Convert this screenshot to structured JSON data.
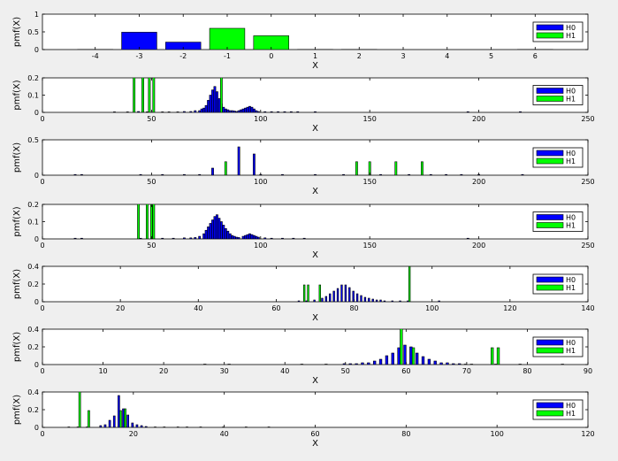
{
  "colors": {
    "H0": "#0000ff",
    "H1": "#00ff00",
    "background": "#efefef"
  },
  "chart_data": [
    {
      "type": "bar",
      "xlabel": "X",
      "ylabel": "pmf(X)",
      "xlim": [
        -5.2,
        7.2
      ],
      "ylim": [
        0,
        1
      ],
      "xticks": [
        -4,
        -3,
        -2,
        -1,
        0,
        1,
        2,
        3,
        4,
        5,
        6
      ],
      "yticks": [
        0,
        0.5,
        1
      ],
      "ytick_labels": [
        "0",
        "0.5",
        "1"
      ],
      "bar_width": 0.8,
      "grouped": false,
      "legend": "right",
      "series": [
        {
          "name": "H0",
          "points": [
            [
              -4,
              0.005
            ],
            [
              -3,
              0.49
            ],
            [
              -2,
              0.21
            ],
            [
              1,
              0.005
            ],
            [
              2,
              0.005
            ],
            [
              6,
              0.005
            ]
          ]
        },
        {
          "name": "H1",
          "points": [
            [
              -1,
              0.6
            ],
            [
              0,
              0.39
            ]
          ]
        }
      ]
    },
    {
      "type": "bar",
      "xlabel": "X",
      "ylabel": "pmf(X)",
      "xlim": [
        0,
        250
      ],
      "ylim": [
        0,
        0.2
      ],
      "xticks": [
        0,
        50,
        100,
        150,
        200,
        250
      ],
      "yticks": [
        0,
        0.1,
        0.2
      ],
      "ytick_labels": [
        "0",
        "0.1",
        "0.2"
      ],
      "bar_width": 0.9,
      "grouped": false,
      "legend": "right",
      "series": [
        {
          "name": "H0",
          "points": [
            [
              33,
              0.003
            ],
            [
              39,
              0.003
            ],
            [
              44,
              0.005
            ],
            [
              46,
              0.003
            ],
            [
              48,
              0.003
            ],
            [
              55,
              0.003
            ],
            [
              58,
              0.003
            ],
            [
              62,
              0.003
            ],
            [
              65,
              0.005
            ],
            [
              68,
              0.005
            ],
            [
              70,
              0.01
            ],
            [
              72,
              0.01
            ],
            [
              73,
              0.02
            ],
            [
              74,
              0.025
            ],
            [
              75,
              0.04
            ],
            [
              76,
              0.07
            ],
            [
              77,
              0.1
            ],
            [
              78,
              0.13
            ],
            [
              79,
              0.15
            ],
            [
              80,
              0.12
            ],
            [
              81,
              0.08
            ],
            [
              82,
              0.05
            ],
            [
              83,
              0.03
            ],
            [
              84,
              0.02
            ],
            [
              85,
              0.015
            ],
            [
              86,
              0.01
            ],
            [
              87,
              0.01
            ],
            [
              88,
              0.008
            ],
            [
              89,
              0.005
            ],
            [
              90,
              0.01
            ],
            [
              91,
              0.015
            ],
            [
              92,
              0.02
            ],
            [
              93,
              0.025
            ],
            [
              94,
              0.03
            ],
            [
              95,
              0.035
            ],
            [
              96,
              0.03
            ],
            [
              97,
              0.02
            ],
            [
              98,
              0.01
            ],
            [
              99,
              0.005
            ],
            [
              102,
              0.004
            ],
            [
              105,
              0.004
            ],
            [
              108,
              0.004
            ],
            [
              111,
              0.004
            ],
            [
              114,
              0.004
            ],
            [
              117,
              0.004
            ],
            [
              125,
              0.004
            ],
            [
              195,
              0.004
            ],
            [
              219,
              0.004
            ]
          ]
        },
        {
          "name": "H1",
          "points": [
            [
              42,
              0.22
            ],
            [
              46,
              0.22
            ],
            [
              49,
              0.22
            ],
            [
              51,
              0.22
            ],
            [
              82,
              0.22
            ]
          ]
        }
      ]
    },
    {
      "type": "bar",
      "xlabel": "X",
      "ylabel": "pmf(X)",
      "xlim": [
        0,
        250
      ],
      "ylim": [
        0,
        0.5
      ],
      "xticks": [
        0,
        50,
        100,
        150,
        200,
        250
      ],
      "yticks": [
        0,
        0.5
      ],
      "ytick_labels": [
        "0",
        "0.5"
      ],
      "bar_width": 0.9,
      "grouped": false,
      "legend": "right",
      "series": [
        {
          "name": "H0",
          "points": [
            [
              15,
              0.01
            ],
            [
              18,
              0.01
            ],
            [
              45,
              0.01
            ],
            [
              55,
              0.01
            ],
            [
              65,
              0.01
            ],
            [
              72,
              0.01
            ],
            [
              78,
              0.1
            ],
            [
              90,
              0.4
            ],
            [
              97,
              0.3
            ],
            [
              100,
              0.01
            ],
            [
              110,
              0.01
            ],
            [
              125,
              0.01
            ],
            [
              138,
              0.01
            ],
            [
              155,
              0.01
            ],
            [
              168,
              0.01
            ],
            [
              178,
              0.01
            ],
            [
              185,
              0.01
            ],
            [
              192,
              0.01
            ],
            [
              200,
              0.01
            ],
            [
              220,
              0.01
            ]
          ]
        },
        {
          "name": "H1",
          "points": [
            [
              84,
              0.19
            ],
            [
              144,
              0.19
            ],
            [
              150,
              0.19
            ],
            [
              162,
              0.19
            ],
            [
              174,
              0.19
            ]
          ]
        }
      ]
    },
    {
      "type": "bar",
      "xlabel": "X",
      "ylabel": "pmf(X)",
      "xlim": [
        0,
        250
      ],
      "ylim": [
        0,
        0.2
      ],
      "xticks": [
        0,
        50,
        100,
        150,
        200,
        250
      ],
      "yticks": [
        0,
        0.1,
        0.2
      ],
      "ytick_labels": [
        "0",
        "0.1",
        "0.2"
      ],
      "bar_width": 0.9,
      "grouped": false,
      "legend": "right",
      "series": [
        {
          "name": "H0",
          "points": [
            [
              15,
              0.004
            ],
            [
              18,
              0.004
            ],
            [
              45,
              0.004
            ],
            [
              50,
              0.004
            ],
            [
              55,
              0.004
            ],
            [
              60,
              0.004
            ],
            [
              65,
              0.006
            ],
            [
              68,
              0.006
            ],
            [
              70,
              0.008
            ],
            [
              72,
              0.015
            ],
            [
              74,
              0.03
            ],
            [
              75,
              0.05
            ],
            [
              76,
              0.07
            ],
            [
              77,
              0.09
            ],
            [
              78,
              0.11
            ],
            [
              79,
              0.13
            ],
            [
              80,
              0.14
            ],
            [
              81,
              0.12
            ],
            [
              82,
              0.1
            ],
            [
              83,
              0.08
            ],
            [
              84,
              0.06
            ],
            [
              85,
              0.045
            ],
            [
              86,
              0.03
            ],
            [
              87,
              0.02
            ],
            [
              88,
              0.015
            ],
            [
              89,
              0.01
            ],
            [
              90,
              0.008
            ],
            [
              92,
              0.015
            ],
            [
              93,
              0.02
            ],
            [
              94,
              0.025
            ],
            [
              95,
              0.03
            ],
            [
              96,
              0.025
            ],
            [
              97,
              0.02
            ],
            [
              98,
              0.015
            ],
            [
              99,
              0.01
            ],
            [
              102,
              0.006
            ],
            [
              105,
              0.004
            ],
            [
              110,
              0.004
            ],
            [
              115,
              0.004
            ],
            [
              120,
              0.004
            ],
            [
              195,
              0.004
            ]
          ]
        },
        {
          "name": "H1",
          "points": [
            [
              44,
              0.22
            ],
            [
              48,
              0.22
            ],
            [
              50,
              0.22
            ],
            [
              51,
              0.22
            ]
          ]
        }
      ]
    },
    {
      "type": "bar",
      "xlabel": "X",
      "ylabel": "pmf(X)",
      "xlim": [
        0,
        140
      ],
      "ylim": [
        0,
        0.4
      ],
      "xticks": [
        0,
        20,
        40,
        60,
        80,
        100,
        120,
        140
      ],
      "yticks": [
        0,
        0.2,
        0.4
      ],
      "ytick_labels": [
        "0",
        "0.2",
        "0.4"
      ],
      "bar_width": 0.8,
      "grouped": true,
      "legend": "right",
      "series": [
        {
          "name": "H0",
          "points": [
            [
              66,
              0.01
            ],
            [
              68,
              0.01
            ],
            [
              70,
              0.02
            ],
            [
              72,
              0.04
            ],
            [
              73,
              0.06
            ],
            [
              74,
              0.09
            ],
            [
              75,
              0.12
            ],
            [
              76,
              0.15
            ],
            [
              77,
              0.19
            ],
            [
              78,
              0.19
            ],
            [
              79,
              0.16
            ],
            [
              80,
              0.12
            ],
            [
              81,
              0.09
            ],
            [
              82,
              0.07
            ],
            [
              83,
              0.05
            ],
            [
              84,
              0.04
            ],
            [
              85,
              0.03
            ],
            [
              86,
              0.02
            ],
            [
              87,
              0.02
            ],
            [
              88,
              0.01
            ],
            [
              90,
              0.01
            ],
            [
              92,
              0.01
            ],
            [
              94,
              0.01
            ],
            [
              102,
              0.01
            ]
          ]
        },
        {
          "name": "H1",
          "points": [
            [
              67,
              0.19
            ],
            [
              68,
              0.19
            ],
            [
              71,
              0.19
            ],
            [
              94,
              0.4
            ]
          ]
        }
      ]
    },
    {
      "type": "bar",
      "xlabel": "X",
      "ylabel": "pmf(X)",
      "xlim": [
        0,
        90
      ],
      "ylim": [
        0,
        0.4
      ],
      "xticks": [
        0,
        10,
        20,
        30,
        40,
        50,
        60,
        70,
        80,
        90
      ],
      "yticks": [
        0,
        0.2,
        0.4
      ],
      "ytick_labels": [
        "0",
        "0.2",
        "0.4"
      ],
      "bar_width": 0.8,
      "grouped": true,
      "legend": "right",
      "series": [
        {
          "name": "H0",
          "points": [
            [
              27,
              0.005
            ],
            [
              31,
              0.005
            ],
            [
              43,
              0.005
            ],
            [
              47,
              0.005
            ],
            [
              50,
              0.01
            ],
            [
              51,
              0.01
            ],
            [
              52,
              0.01
            ],
            [
              53,
              0.02
            ],
            [
              54,
              0.02
            ],
            [
              55,
              0.04
            ],
            [
              56,
              0.06
            ],
            [
              57,
              0.1
            ],
            [
              58,
              0.13
            ],
            [
              59,
              0.19
            ],
            [
              60,
              0.22
            ],
            [
              61,
              0.2
            ],
            [
              62,
              0.13
            ],
            [
              63,
              0.09
            ],
            [
              64,
              0.06
            ],
            [
              65,
              0.04
            ],
            [
              66,
              0.02
            ],
            [
              67,
              0.02
            ],
            [
              68,
              0.01
            ],
            [
              69,
              0.01
            ],
            [
              70,
              0.005
            ],
            [
              71,
              0.005
            ],
            [
              75,
              0.005
            ],
            [
              79,
              0.005
            ],
            [
              86,
              0.005
            ]
          ]
        },
        {
          "name": "H1",
          "points": [
            [
              59,
              0.41
            ],
            [
              61,
              0.19
            ],
            [
              74,
              0.19
            ],
            [
              75,
              0.19
            ]
          ]
        }
      ]
    },
    {
      "type": "bar",
      "xlabel": "X",
      "ylabel": "pmf(X)",
      "xlim": [
        0,
        120
      ],
      "ylim": [
        0,
        0.4
      ],
      "xticks": [
        0,
        20,
        40,
        60,
        80,
        100,
        120
      ],
      "yticks": [
        0,
        0.2,
        0.4
      ],
      "ytick_labels": [
        "0",
        "0.2",
        "0.4"
      ],
      "bar_width": 0.8,
      "grouped": true,
      "legend": "right",
      "series": [
        {
          "name": "H0",
          "points": [
            [
              6,
              0.005
            ],
            [
              8,
              0.005
            ],
            [
              10,
              0.005
            ],
            [
              13,
              0.02
            ],
            [
              14,
              0.03
            ],
            [
              15,
              0.08
            ],
            [
              16,
              0.13
            ],
            [
              17,
              0.36
            ],
            [
              18,
              0.21
            ],
            [
              19,
              0.14
            ],
            [
              20,
              0.05
            ],
            [
              21,
              0.03
            ],
            [
              22,
              0.02
            ],
            [
              23,
              0.01
            ],
            [
              25,
              0.005
            ],
            [
              27,
              0.005
            ],
            [
              30,
              0.005
            ],
            [
              32,
              0.005
            ],
            [
              35,
              0.005
            ],
            [
              40,
              0.005
            ],
            [
              45,
              0.005
            ],
            [
              50,
              0.005
            ]
          ]
        },
        {
          "name": "H1",
          "points": [
            [
              8,
              0.41
            ],
            [
              10,
              0.19
            ],
            [
              17,
              0.19
            ],
            [
              18,
              0.21
            ]
          ]
        }
      ]
    }
  ]
}
